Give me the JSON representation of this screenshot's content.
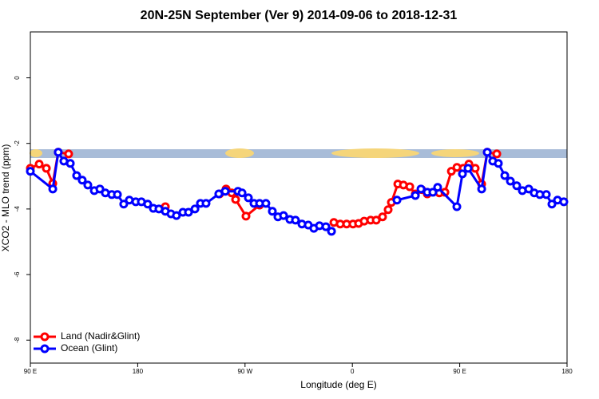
{
  "chart_data": {
    "type": "line",
    "title": "20N-25N September (Ver 9)   2014-09-06 to 2018-12-31",
    "x_label": "Longitude (deg E)",
    "y_label": "XCO2 - MLO trend (ppm)",
    "xlim": [
      90,
      540
    ],
    "xticks": [
      {
        "value": 90,
        "label": "90 E"
      },
      {
        "value": 180,
        "label": "180"
      },
      {
        "value": 270,
        "label": "90 W"
      },
      {
        "value": 360,
        "label": "0"
      },
      {
        "value": 450,
        "label": "90 E"
      },
      {
        "value": 540,
        "label": "180"
      }
    ],
    "ylim": [
      -8.7,
      1.4
    ],
    "yticks": [
      0,
      -2,
      -4,
      -6,
      -8
    ],
    "legend": "bottom-left",
    "series": [
      {
        "name": "Land (Nadir&Glint)",
        "color": "#ff0000",
        "x": [
          90,
          97.4,
          103.4,
          108.8,
          113.4,
          122.1,
          null,
          203.2,
          null,
          248.7,
          254.1,
          258.8,
          262.1,
          270.8,
          282.2,
          null,
          344.5,
          349.8,
          355.2,
          360.5,
          365.2,
          369.9,
          375.3,
          380.0,
          385.3,
          390.0,
          392.7,
          398.1,
          402.8,
          408.1,
          412.8,
          418.1,
          422.8,
          432.9,
          437.6,
          443.0,
          447.7,
          453.0,
          457.7,
          463.0,
          468.4,
          473.1,
          481.1
        ],
        "values": [
          -2.76,
          -2.63,
          -2.76,
          -3.22,
          -2.27,
          -2.32,
          null,
          -3.93,
          null,
          -3.54,
          -3.39,
          -3.51,
          -3.71,
          -4.22,
          -3.88,
          null,
          -4.41,
          -4.46,
          -4.46,
          -4.46,
          -4.44,
          -4.37,
          -4.34,
          -4.34,
          -4.24,
          -4.02,
          -3.8,
          -3.24,
          -3.27,
          -3.32,
          -3.54,
          -3.41,
          -3.54,
          -3.51,
          -3.49,
          -2.85,
          -2.73,
          -2.76,
          -2.63,
          -2.76,
          -3.24,
          -2.27,
          -2.32
        ]
      },
      {
        "name": "Ocean (Glint)",
        "color": "#0000ff",
        "x": [
          90,
          108.8,
          113.4,
          118.1,
          123.5,
          128.8,
          133.5,
          138.2,
          143.6,
          148.3,
          152.9,
          158.3,
          163.0,
          168.3,
          173.0,
          178.4,
          183.1,
          188.4,
          193.1,
          197.8,
          203.2,
          207.9,
          212.5,
          217.9,
          222.6,
          228.0,
          232.6,
          237.3,
          248.0,
          253.4,
          264.1,
          267.5,
          272.8,
          277.5,
          282.2,
          287.5,
          292.9,
          297.6,
          302.3,
          307.6,
          312.3,
          317.7,
          323.0,
          327.7,
          332.4,
          337.8,
          342.5,
          null,
          397.4,
          412.8,
          417.5,
          422.8,
          427.5,
          431.5,
          447.6,
          452.3,
          457.0,
          468.4,
          473.1,
          477.7,
          482.4,
          487.8,
          492.5,
          497.8,
          502.5,
          507.9,
          512.5,
          517.2,
          522.6,
          527.3,
          532.0,
          537.3
        ],
        "values": [
          -2.85,
          -3.39,
          -2.27,
          -2.54,
          -2.61,
          -2.98,
          -3.12,
          -3.27,
          -3.44,
          -3.39,
          -3.51,
          -3.56,
          -3.56,
          -3.85,
          -3.73,
          -3.78,
          -3.78,
          -3.85,
          -3.98,
          -4.0,
          -4.07,
          -4.15,
          -4.2,
          -4.1,
          -4.1,
          -4.0,
          -3.83,
          -3.83,
          -3.54,
          -3.46,
          -3.46,
          -3.51,
          -3.66,
          -3.83,
          -3.83,
          -3.83,
          -4.07,
          -4.24,
          -4.2,
          -4.32,
          -4.34,
          -4.46,
          -4.49,
          -4.59,
          -4.51,
          -4.54,
          -4.68,
          null,
          -3.73,
          -3.59,
          -3.39,
          -3.49,
          -3.49,
          -3.34,
          -3.93,
          -2.93,
          -2.76,
          -3.39,
          -2.27,
          -2.54,
          -2.61,
          -2.98,
          -3.15,
          -3.29,
          -3.44,
          -3.39,
          -3.51,
          -3.56,
          -3.56,
          -3.85,
          -3.73,
          -3.78
        ]
      }
    ]
  }
}
